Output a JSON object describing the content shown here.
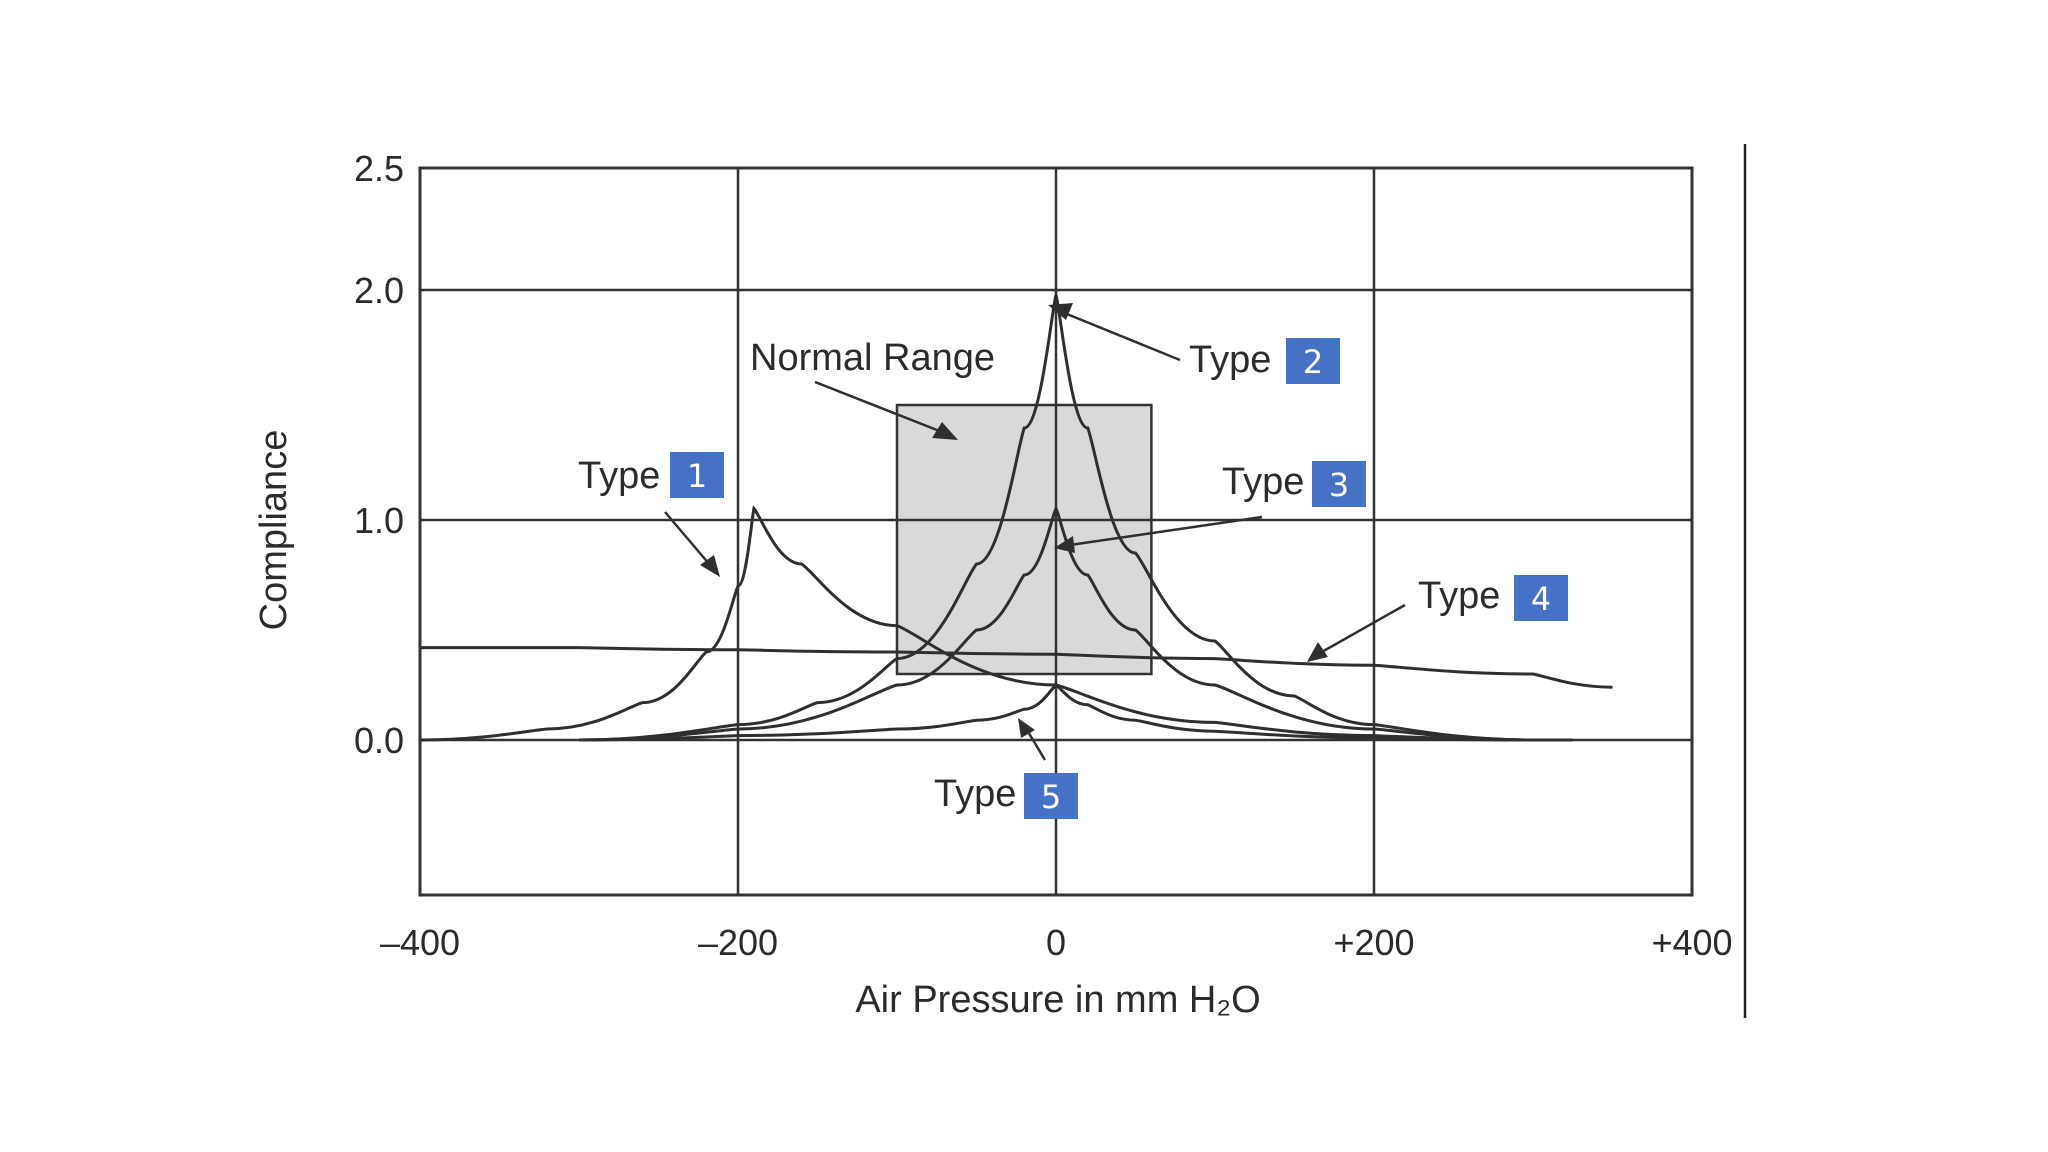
{
  "colors": {
    "badge": "#4472c4",
    "normal_range_fill": "#d9d9d9",
    "line": "#2f2f2f"
  },
  "chart_data": {
    "type": "line",
    "title": "",
    "xlabel": "Air Pressure in mm H₂O",
    "ylabel": "Compliance",
    "x_tick_labels": [
      "–400",
      "–200",
      "0",
      "+200",
      "+400"
    ],
    "x_tick_values": [
      -400,
      -200,
      0,
      200,
      400
    ],
    "y_tick_labels": [
      "0.0",
      "1.0",
      "2.0",
      "2.5"
    ],
    "y_tick_values": [
      0.0,
      1.0,
      2.0,
      2.5
    ],
    "xlim": [
      -400,
      400
    ],
    "ylim": [
      -0.7,
      2.5
    ],
    "grid": true,
    "normal_range": {
      "label": "Normal Range",
      "x_range": [
        -100,
        60
      ],
      "y_range": [
        0.3,
        1.5
      ]
    },
    "series": [
      {
        "name": "Type 1",
        "x": [
          -400,
          -320,
          -260,
          -220,
          -200,
          -190,
          -160,
          -100,
          0,
          100,
          200,
          300,
          325
        ],
        "y": [
          0.0,
          0.05,
          0.17,
          0.4,
          0.7,
          1.05,
          0.8,
          0.52,
          0.25,
          0.08,
          0.02,
          0.0,
          0.0
        ]
      },
      {
        "name": "Type 2",
        "x": [
          -300,
          -200,
          -150,
          -100,
          -50,
          -20,
          0,
          20,
          50,
          100,
          150,
          200,
          300
        ],
        "y": [
          0.0,
          0.07,
          0.17,
          0.37,
          0.8,
          1.4,
          1.98,
          1.4,
          0.85,
          0.45,
          0.2,
          0.07,
          0.0
        ]
      },
      {
        "name": "Type 3",
        "x": [
          -300,
          -200,
          -100,
          -50,
          -20,
          0,
          20,
          50,
          100,
          200,
          300
        ],
        "y": [
          0.0,
          0.05,
          0.25,
          0.5,
          0.75,
          1.05,
          0.75,
          0.5,
          0.25,
          0.05,
          0.0
        ]
      },
      {
        "name": "Type 4",
        "x": [
          -400,
          -300,
          -200,
          -100,
          0,
          100,
          200,
          300,
          350
        ],
        "y": [
          0.42,
          0.42,
          0.41,
          0.4,
          0.39,
          0.37,
          0.34,
          0.3,
          0.24
        ]
      },
      {
        "name": "Type 5",
        "x": [
          -300,
          -200,
          -100,
          -50,
          -20,
          0,
          20,
          50,
          100,
          200,
          300
        ],
        "y": [
          0.0,
          0.02,
          0.05,
          0.09,
          0.14,
          0.25,
          0.16,
          0.09,
          0.04,
          0.01,
          0.0
        ]
      }
    ],
    "annotations": [
      {
        "label": "Normal Range",
        "arrow_to": [
          -60,
          1.35
        ]
      },
      {
        "label": "Type",
        "number": "1",
        "arrow_to": [
          -200,
          0.74
        ]
      },
      {
        "label": "Type",
        "number": "2",
        "arrow_to": [
          2,
          1.96
        ]
      },
      {
        "label": "Type",
        "number": "3",
        "arrow_to": [
          3,
          0.87
        ]
      },
      {
        "label": "Type",
        "number": "4",
        "arrow_to": [
          170,
          0.37
        ]
      },
      {
        "label": "Type",
        "number": "5",
        "arrow_to": [
          -20,
          0.1
        ]
      }
    ]
  }
}
